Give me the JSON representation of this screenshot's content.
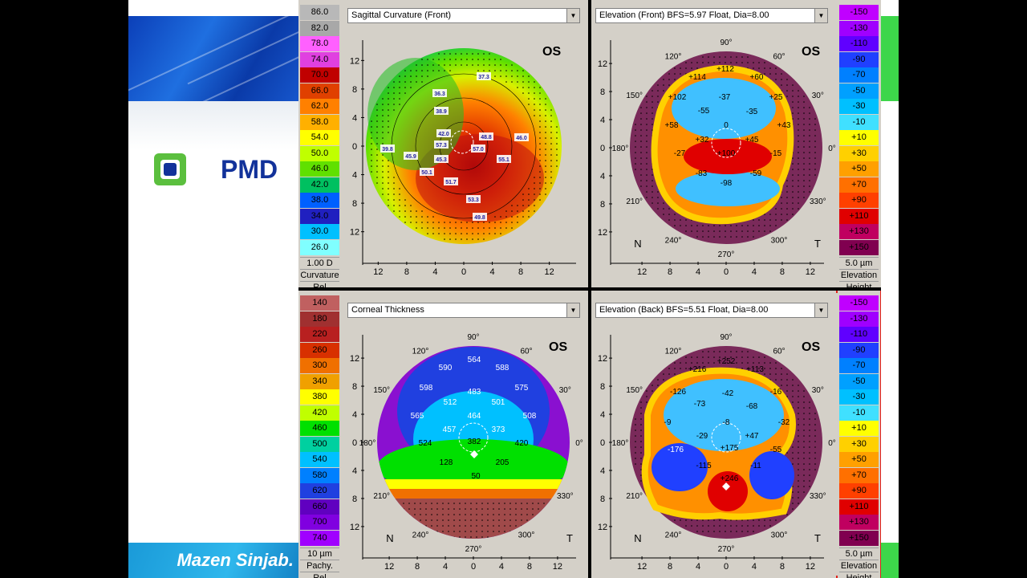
{
  "slide": {
    "bullet_text": "PMD",
    "author": "Mazen Sinjab."
  },
  "panels": {
    "sagittal": {
      "dropdown": "Sagittal Curvature (Front)",
      "eye": "OS",
      "scale_values": [
        "86.0",
        "82.0",
        "78.0",
        "74.0",
        "70.0",
        "66.0",
        "62.0",
        "58.0",
        "54.0",
        "50.0",
        "46.0",
        "42.0",
        "38.0",
        "34.0",
        "30.0",
        "26.0"
      ],
      "scale_step": "1.00 D",
      "scale_label": "Curvature",
      "scale_mode": "Rel",
      "map_labels": [
        "37.3",
        "36.3",
        "38.9",
        "42.0",
        "57.3",
        "57.0",
        "48.8",
        "46.0",
        "55.1",
        "45.3",
        "50.1",
        "51.7",
        "53.3",
        "49.8",
        "39.8",
        "45.9"
      ],
      "axis_ticks": [
        "12",
        "8",
        "4",
        "0",
        "4",
        "8",
        "12"
      ]
    },
    "front_elevation": {
      "dropdown": "Elevation (Front)  BFS=5.97 Float, Dia=8.00",
      "eye": "OS",
      "scale_values": [
        "-150",
        "-130",
        "-110",
        "-90",
        "-70",
        "-50",
        "-30",
        "-10",
        "+10",
        "+30",
        "+50",
        "+70",
        "+90",
        "+110",
        "+130",
        "+150"
      ],
      "scale_step": "5.0 µm",
      "scale_label": "Elevation",
      "scale_mode": "Height",
      "map_labels": [
        "+112",
        "+114",
        "+60",
        "+102",
        "+25",
        "-55",
        "-37",
        "-35",
        "0",
        "+58",
        "+43",
        "+32",
        "+45",
        "-27",
        "+100",
        "-15",
        "-83",
        "-59",
        "-98"
      ],
      "angle_labels": [
        "90°",
        "60°",
        "30°",
        "0°",
        "330°",
        "300°",
        "270°",
        "240°",
        "210°",
        "180°",
        "150°",
        "120°"
      ],
      "axis_ticks": [
        "12",
        "8",
        "4",
        "0",
        "4",
        "8",
        "12"
      ],
      "nasal": "N",
      "temporal": "T"
    },
    "thickness": {
      "dropdown": "Corneal Thickness",
      "eye": "OS",
      "scale_values": [
        "140",
        "180",
        "220",
        "260",
        "300",
        "340",
        "380",
        "420",
        "460",
        "500",
        "540",
        "580",
        "620",
        "660",
        "700",
        "740"
      ],
      "scale_step": "10 µm",
      "scale_label": "Pachy.",
      "scale_mode": "Rel",
      "map_labels": [
        "564",
        "590",
        "588",
        "598",
        "575",
        "512",
        "483",
        "501",
        "565",
        "464",
        "508",
        "457",
        "373",
        "524",
        "382",
        "420",
        "128",
        "205",
        "50"
      ],
      "angle_labels": [
        "90°",
        "60°",
        "30°",
        "0°",
        "330°",
        "300°",
        "270°",
        "240°",
        "210°",
        "180°",
        "150°",
        "120°"
      ],
      "axis_ticks": [
        "12",
        "8",
        "4",
        "0",
        "4",
        "8",
        "12"
      ],
      "nasal": "N",
      "temporal": "T"
    },
    "back_elevation": {
      "dropdown": "Elevation (Back)  BFS=5.51 Float, Dia=8.00",
      "eye": "OS",
      "scale_values": [
        "-150",
        "-130",
        "-110",
        "-90",
        "-70",
        "-50",
        "-30",
        "-10",
        "+10",
        "+30",
        "+50",
        "+70",
        "+90",
        "+110",
        "+130",
        "+150"
      ],
      "scale_step": "5.0 µm",
      "scale_label": "Elevation",
      "scale_mode": "Height",
      "map_labels": [
        "+252",
        "+216",
        "+113",
        "-126",
        "-16",
        "-73",
        "-42",
        "-68",
        "-9",
        "-8",
        "-32",
        "-29",
        "+47",
        "-176",
        "+175",
        "-55",
        "-115",
        "-11",
        "+246"
      ],
      "angle_labels": [
        "90°",
        "60°",
        "30°",
        "0°",
        "330°",
        "300°",
        "270°",
        "240°",
        "210°",
        "180°",
        "150°",
        "120°"
      ],
      "axis_ticks": [
        "12",
        "8",
        "4",
        "0",
        "4",
        "8",
        "12"
      ],
      "nasal": "N",
      "temporal": "T"
    }
  },
  "colors": {
    "curvature": [
      "#b8b8b8",
      "#a8a8a8",
      "#ff60ff",
      "#e040e0",
      "#c00000",
      "#e04000",
      "#ff8000",
      "#ffb000",
      "#ffff00",
      "#c0ff00",
      "#60e000",
      "#00c060",
      "#0060ff",
      "#2020c0",
      "#00c0ff",
      "#80ffff"
    ],
    "elevation": [
      "#c000ff",
      "#a000ff",
      "#6000ff",
      "#2040ff",
      "#0080ff",
      "#00a0ff",
      "#00c0ff",
      "#40e0ff",
      "#ffff00",
      "#ffd000",
      "#ffa000",
      "#ff7000",
      "#ff4000",
      "#e00000",
      "#c00060",
      "#800050"
    ],
    "pachy": [
      "#c06060",
      "#a03030",
      "#b82020",
      "#d83000",
      "#f07000",
      "#f0a000",
      "#ffff00",
      "#c0ff00",
      "#00e000",
      "#00d0a0",
      "#00c0ff",
      "#0080ff",
      "#2040e0",
      "#6000c0",
      "#8000e0",
      "#a000ff"
    ]
  }
}
